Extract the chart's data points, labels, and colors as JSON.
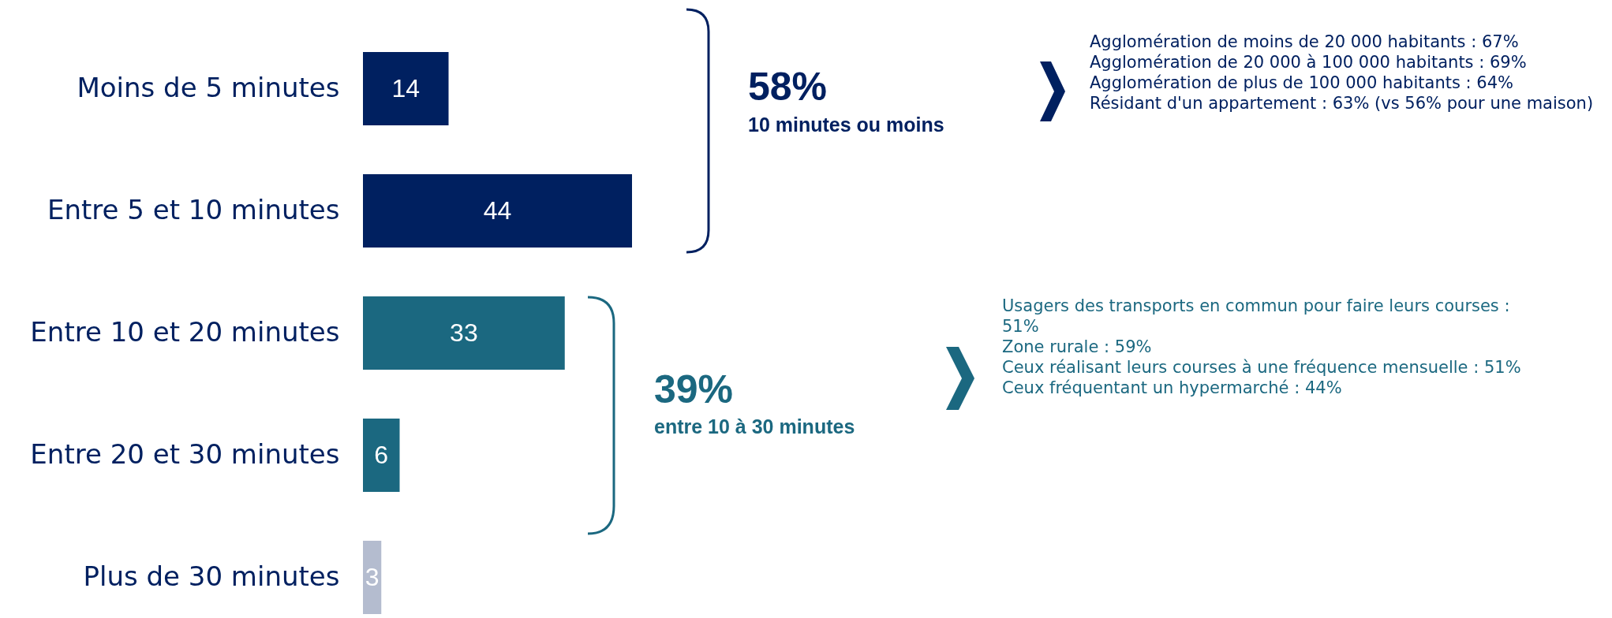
{
  "chart_data": {
    "type": "bar",
    "orientation": "horizontal",
    "categories": [
      "Moins de 5 minutes",
      "Entre 5 et 10 minutes",
      "Entre 10 et 20 minutes",
      "Entre 20 et 30 minutes",
      "Plus de 30 minutes"
    ],
    "values": [
      14,
      44,
      33,
      6,
      3
    ],
    "colors": [
      "#002060",
      "#002060",
      "#1b6880",
      "#1b6880",
      "#b4bccf"
    ],
    "data_labels": true,
    "annotations": [
      "58%",
      "10 minutes ou moins",
      "Agglomération de moins de 20 000 habitants : 67%",
      "Agglomération de 20 000 à 100 000 habitants : 69%",
      "Agglomération de plus de 100 000 habitants : 64%",
      "Résidant d'un appartement : 63% (vs 56% pour une maison)",
      "39%",
      "entre 10 à 30 minutes",
      "Usagers des transports en commun pour faire leurs courses : 51%",
      "Zone rurale : 59%",
      "Ceux réalisant leurs courses à une fréquence mensuelle : 51%",
      "Ceux fréquentant un hypermarché : 44%"
    ]
  }
}
